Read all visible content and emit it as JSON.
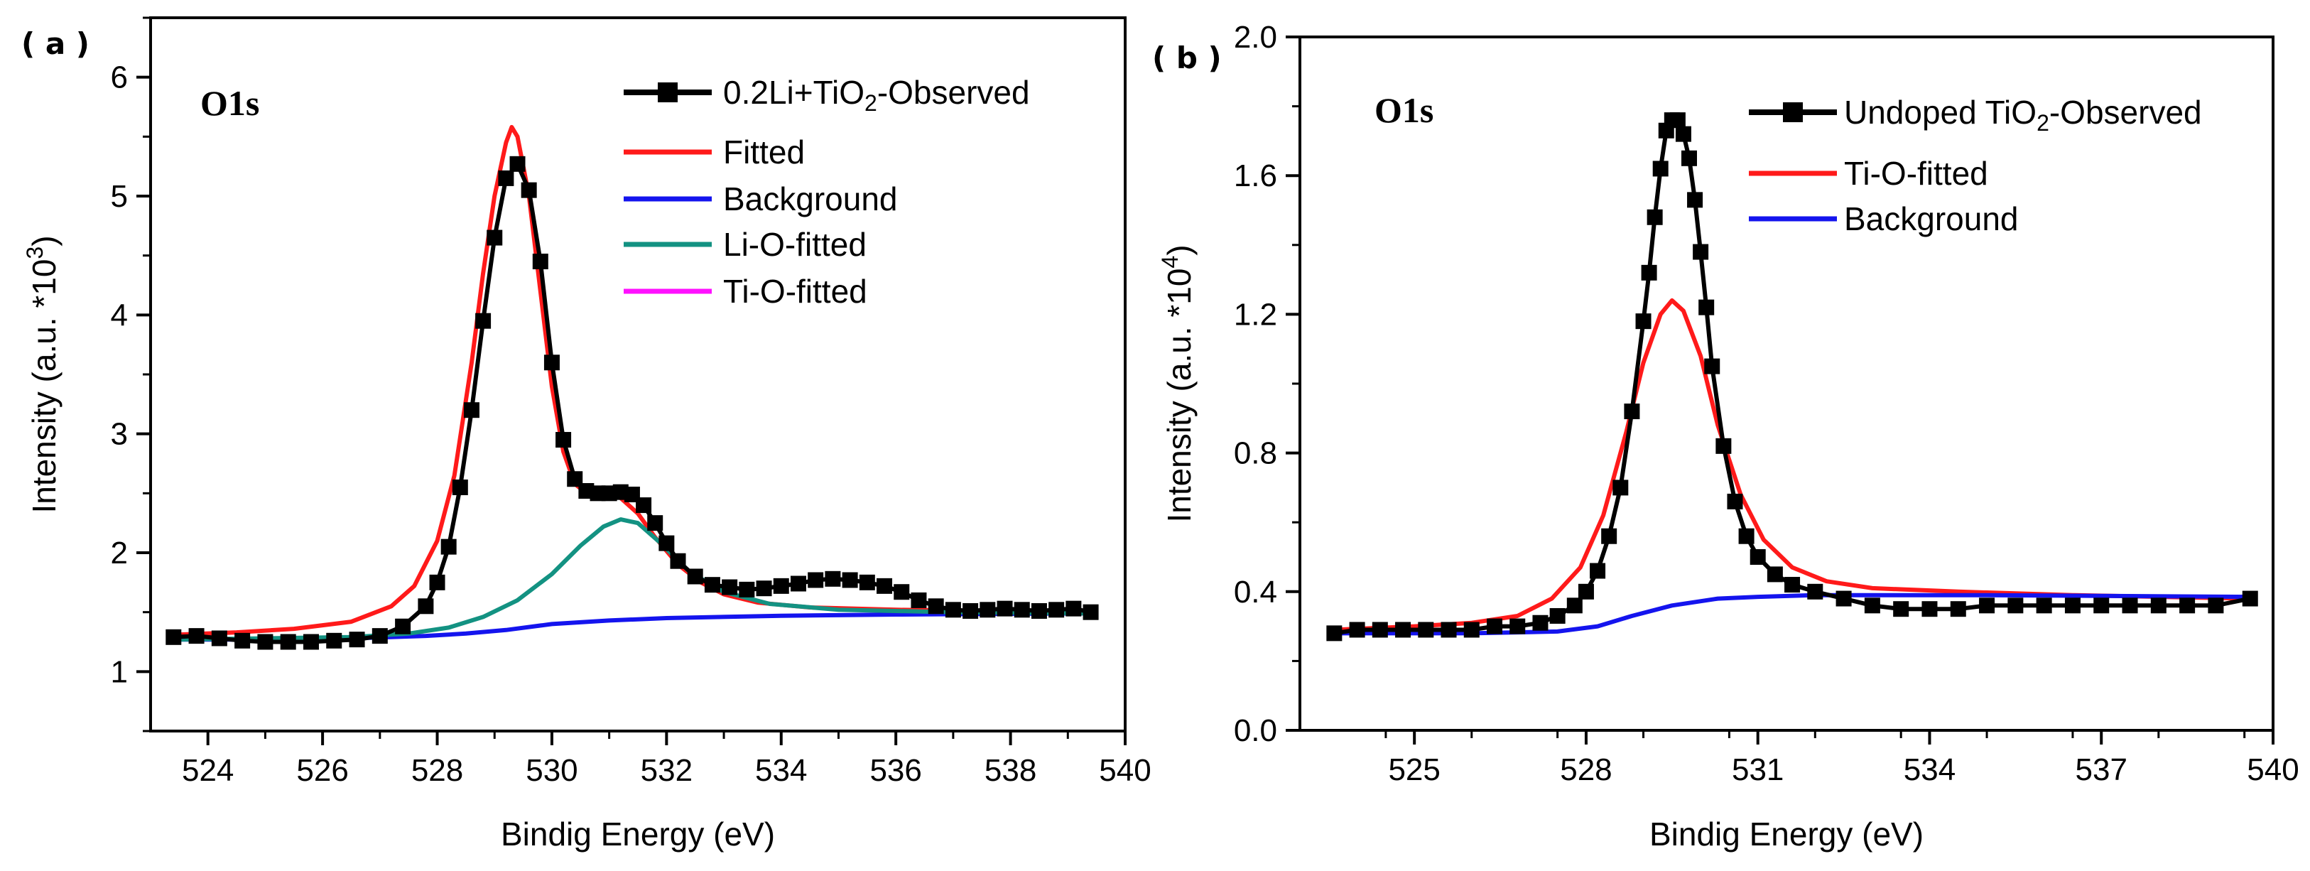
{
  "chart_data": [
    {
      "type": "line",
      "panel_label": "( a )",
      "annotation": "O1s",
      "title": "",
      "xlabel": "Bindig Energy (eV)",
      "ylabel": "Intensity (a.u. *10",
      "ylabel_exp": "3",
      "ylabel_close": ")",
      "xlim": [
        523,
        540
      ],
      "ylim": [
        0.5,
        6.5
      ],
      "xticks": [
        524,
        526,
        528,
        530,
        532,
        534,
        536,
        538,
        540
      ],
      "yticks": [
        1,
        2,
        3,
        4,
        5,
        6
      ],
      "x_minor": 1,
      "y_minor": 0.5,
      "legend_position": "top-right",
      "series": [
        {
          "name": "0.2Li+TiO2-Observed",
          "legend_main": "0.2Li+TiO",
          "legend_sub": "2",
          "legend_rest": "-Observed",
          "color": "#000000",
          "marker": "square",
          "points": [
            [
              523.4,
              1.29
            ],
            [
              523.8,
              1.3
            ],
            [
              524.2,
              1.28
            ],
            [
              524.6,
              1.26
            ],
            [
              525.0,
              1.25
            ],
            [
              525.4,
              1.25
            ],
            [
              525.8,
              1.25
            ],
            [
              526.2,
              1.26
            ],
            [
              526.6,
              1.27
            ],
            [
              527.0,
              1.3
            ],
            [
              527.4,
              1.38
            ],
            [
              527.8,
              1.55
            ],
            [
              528.0,
              1.75
            ],
            [
              528.2,
              2.05
            ],
            [
              528.4,
              2.55
            ],
            [
              528.6,
              3.2
            ],
            [
              528.8,
              3.95
            ],
            [
              529.0,
              4.65
            ],
            [
              529.2,
              5.15
            ],
            [
              529.4,
              5.27
            ],
            [
              529.6,
              5.05
            ],
            [
              529.8,
              4.45
            ],
            [
              530.0,
              3.6
            ],
            [
              530.2,
              2.95
            ],
            [
              530.4,
              2.62
            ],
            [
              530.6,
              2.52
            ],
            [
              530.8,
              2.5
            ],
            [
              531.0,
              2.5
            ],
            [
              531.2,
              2.51
            ],
            [
              531.4,
              2.49
            ],
            [
              531.6,
              2.4
            ],
            [
              531.8,
              2.25
            ],
            [
              532.0,
              2.08
            ],
            [
              532.2,
              1.93
            ],
            [
              532.5,
              1.8
            ],
            [
              532.8,
              1.73
            ],
            [
              533.1,
              1.71
            ],
            [
              533.4,
              1.69
            ],
            [
              533.7,
              1.7
            ],
            [
              534.0,
              1.72
            ],
            [
              534.3,
              1.74
            ],
            [
              534.6,
              1.77
            ],
            [
              534.9,
              1.78
            ],
            [
              535.2,
              1.77
            ],
            [
              535.5,
              1.75
            ],
            [
              535.8,
              1.72
            ],
            [
              536.1,
              1.67
            ],
            [
              536.4,
              1.6
            ],
            [
              536.7,
              1.55
            ],
            [
              537.0,
              1.52
            ],
            [
              537.3,
              1.51
            ],
            [
              537.6,
              1.52
            ],
            [
              537.9,
              1.53
            ],
            [
              538.2,
              1.52
            ],
            [
              538.5,
              1.51
            ],
            [
              538.8,
              1.52
            ],
            [
              539.1,
              1.53
            ],
            [
              539.4,
              1.5
            ]
          ]
        },
        {
          "name": "Fitted",
          "color": "#ff1a1a",
          "points": [
            [
              523.4,
              1.31
            ],
            [
              524.5,
              1.33
            ],
            [
              525.5,
              1.36
            ],
            [
              526.5,
              1.42
            ],
            [
              527.2,
              1.55
            ],
            [
              527.6,
              1.72
            ],
            [
              528.0,
              2.1
            ],
            [
              528.3,
              2.65
            ],
            [
              528.6,
              3.6
            ],
            [
              528.8,
              4.35
            ],
            [
              529.0,
              5.0
            ],
            [
              529.2,
              5.45
            ],
            [
              529.3,
              5.58
            ],
            [
              529.4,
              5.5
            ],
            [
              529.6,
              5.0
            ],
            [
              529.8,
              4.2
            ],
            [
              530.0,
              3.4
            ],
            [
              530.2,
              2.85
            ],
            [
              530.4,
              2.58
            ],
            [
              530.6,
              2.5
            ],
            [
              530.9,
              2.5
            ],
            [
              531.2,
              2.46
            ],
            [
              531.5,
              2.33
            ],
            [
              531.8,
              2.13
            ],
            [
              532.2,
              1.9
            ],
            [
              532.6,
              1.75
            ],
            [
              533.0,
              1.65
            ],
            [
              533.6,
              1.58
            ],
            [
              534.5,
              1.54
            ],
            [
              536.0,
              1.52
            ],
            [
              537.5,
              1.51
            ],
            [
              539.4,
              1.5
            ]
          ]
        },
        {
          "name": "Background",
          "color": "#1414ee",
          "points": [
            [
              523.4,
              1.27
            ],
            [
              525.0,
              1.27
            ],
            [
              526.5,
              1.28
            ],
            [
              527.8,
              1.3
            ],
            [
              528.5,
              1.32
            ],
            [
              529.2,
              1.35
            ],
            [
              530.0,
              1.4
            ],
            [
              531.0,
              1.43
            ],
            [
              532.0,
              1.45
            ],
            [
              534.0,
              1.47
            ],
            [
              536.0,
              1.48
            ],
            [
              539.4,
              1.49
            ]
          ]
        },
        {
          "name": "Li-O-fitted",
          "color": "#139282",
          "points": [
            [
              523.4,
              1.27
            ],
            [
              525.0,
              1.28
            ],
            [
              526.5,
              1.29
            ],
            [
              527.5,
              1.32
            ],
            [
              528.2,
              1.37
            ],
            [
              528.8,
              1.46
            ],
            [
              529.4,
              1.6
            ],
            [
              530.0,
              1.82
            ],
            [
              530.5,
              2.06
            ],
            [
              530.9,
              2.22
            ],
            [
              531.2,
              2.28
            ],
            [
              531.5,
              2.25
            ],
            [
              531.9,
              2.08
            ],
            [
              532.4,
              1.84
            ],
            [
              533.0,
              1.67
            ],
            [
              533.8,
              1.57
            ],
            [
              535.0,
              1.52
            ],
            [
              537.0,
              1.5
            ],
            [
              539.4,
              1.49
            ]
          ]
        },
        {
          "name": "Ti-O-fitted",
          "color": "#ff10ff",
          "points": []
        }
      ]
    },
    {
      "type": "line",
      "panel_label": "( b )",
      "annotation": "O1s",
      "title": "",
      "xlabel": "Bindig Energy (eV)",
      "ylabel": "Intensity (a.u. *10",
      "ylabel_exp": "4",
      "ylabel_close": ")",
      "xlim": [
        523,
        540
      ],
      "ylim": [
        0.0,
        2.0
      ],
      "xticks": [
        525,
        528,
        531,
        534,
        537,
        540
      ],
      "ytick_labels": [
        "0.0",
        "0.4",
        "0.8",
        "1.2",
        "1.6",
        "2.0"
      ],
      "yticks": [
        0.0,
        0.4,
        0.8,
        1.2,
        1.6,
        2.0
      ],
      "x_minor": 1.5,
      "y_minor": 0.2,
      "legend_position": "top-right",
      "series": [
        {
          "name": "Undoped TiO2-Observed",
          "legend_main": "Undoped TiO",
          "legend_sub": "2",
          "legend_rest": "-Observed",
          "color": "#000000",
          "marker": "square",
          "points": [
            [
              523.6,
              0.28
            ],
            [
              524.0,
              0.29
            ],
            [
              524.4,
              0.29
            ],
            [
              524.8,
              0.29
            ],
            [
              525.2,
              0.29
            ],
            [
              525.6,
              0.29
            ],
            [
              526.0,
              0.29
            ],
            [
              526.4,
              0.3
            ],
            [
              526.8,
              0.3
            ],
            [
              527.2,
              0.31
            ],
            [
              527.5,
              0.33
            ],
            [
              527.8,
              0.36
            ],
            [
              528.0,
              0.4
            ],
            [
              528.2,
              0.46
            ],
            [
              528.4,
              0.56
            ],
            [
              528.6,
              0.7
            ],
            [
              528.8,
              0.92
            ],
            [
              529.0,
              1.18
            ],
            [
              529.1,
              1.32
            ],
            [
              529.2,
              1.48
            ],
            [
              529.3,
              1.62
            ],
            [
              529.4,
              1.73
            ],
            [
              529.5,
              1.76
            ],
            [
              529.6,
              1.76
            ],
            [
              529.7,
              1.72
            ],
            [
              529.8,
              1.65
            ],
            [
              529.9,
              1.53
            ],
            [
              530.0,
              1.38
            ],
            [
              530.1,
              1.22
            ],
            [
              530.2,
              1.05
            ],
            [
              530.4,
              0.82
            ],
            [
              530.6,
              0.66
            ],
            [
              530.8,
              0.56
            ],
            [
              531.0,
              0.5
            ],
            [
              531.3,
              0.45
            ],
            [
              531.6,
              0.42
            ],
            [
              532.0,
              0.4
            ],
            [
              532.5,
              0.38
            ],
            [
              533.0,
              0.36
            ],
            [
              533.5,
              0.35
            ],
            [
              534.0,
              0.35
            ],
            [
              534.5,
              0.35
            ],
            [
              535.0,
              0.36
            ],
            [
              535.5,
              0.36
            ],
            [
              536.0,
              0.36
            ],
            [
              536.5,
              0.36
            ],
            [
              537.0,
              0.36
            ],
            [
              537.5,
              0.36
            ],
            [
              538.0,
              0.36
            ],
            [
              538.5,
              0.36
            ],
            [
              539.0,
              0.36
            ],
            [
              539.6,
              0.38
            ]
          ]
        },
        {
          "name": "Ti-O-fitted",
          "color": "#ff1a1a",
          "points": [
            [
              523.6,
              0.29
            ],
            [
              525.0,
              0.3
            ],
            [
              526.0,
              0.31
            ],
            [
              526.8,
              0.33
            ],
            [
              527.4,
              0.38
            ],
            [
              527.9,
              0.47
            ],
            [
              528.3,
              0.62
            ],
            [
              528.7,
              0.86
            ],
            [
              529.0,
              1.06
            ],
            [
              529.3,
              1.2
            ],
            [
              529.5,
              1.24
            ],
            [
              529.7,
              1.21
            ],
            [
              530.0,
              1.08
            ],
            [
              530.3,
              0.88
            ],
            [
              530.7,
              0.68
            ],
            [
              531.1,
              0.55
            ],
            [
              531.6,
              0.47
            ],
            [
              532.2,
              0.43
            ],
            [
              533.0,
              0.41
            ],
            [
              534.5,
              0.4
            ],
            [
              536.5,
              0.39
            ],
            [
              539.6,
              0.38
            ]
          ]
        },
        {
          "name": "Background",
          "color": "#1414ee",
          "points": [
            [
              523.6,
              0.28
            ],
            [
              526.0,
              0.28
            ],
            [
              527.5,
              0.285
            ],
            [
              528.2,
              0.3
            ],
            [
              528.8,
              0.33
            ],
            [
              529.5,
              0.36
            ],
            [
              530.3,
              0.38
            ],
            [
              531.0,
              0.385
            ],
            [
              532.0,
              0.39
            ],
            [
              535.0,
              0.39
            ],
            [
              539.6,
              0.385
            ]
          ]
        }
      ]
    }
  ]
}
